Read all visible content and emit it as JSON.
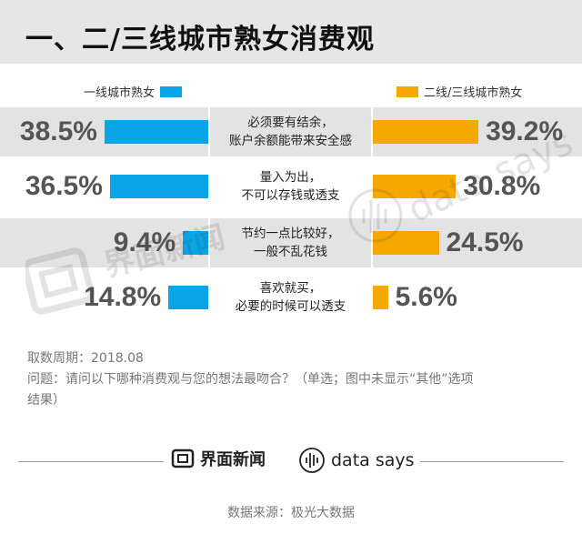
{
  "title": "一、二/三线城市熟女消费观",
  "colors": {
    "tier1": "#0aa5e6",
    "tier23": "#f5a800"
  },
  "chart_data": {
    "type": "bar",
    "orientation": "horizontal-butterfly",
    "categories": [
      [
        "必须要有结余，",
        "账户余额能带来安全感"
      ],
      [
        "量入为出，",
        "不可以存钱或透支"
      ],
      [
        "节约一点比较好，",
        "一般不乱花钱"
      ],
      [
        "喜欢就买，",
        "必要的时候可以透支"
      ]
    ],
    "series": [
      {
        "name": "一线城市熟女",
        "values": [
          38.5,
          36.5,
          9.4,
          14.8
        ],
        "labels": [
          "38.5%",
          "36.5%",
          "9.4%",
          "14.8%"
        ]
      },
      {
        "name": "二线/三线城市熟女",
        "values": [
          39.2,
          30.8,
          24.5,
          5.6
        ],
        "labels": [
          "39.2%",
          "30.8%",
          "24.5%",
          "5.6%"
        ]
      }
    ],
    "unit": "%"
  },
  "notes": {
    "period": "取数周期：2018.08",
    "question_line1": "问题：请问以下哪种消费观与您的想法最吻合？（单选；图中未显示“其他”选项",
    "question_line2": "结果）"
  },
  "watermark": {
    "brand": "界面新闻",
    "data": "data says"
  },
  "footer": {
    "brand": "界面新闻",
    "data": "data says",
    "source": "数据来源：极光大数据"
  }
}
